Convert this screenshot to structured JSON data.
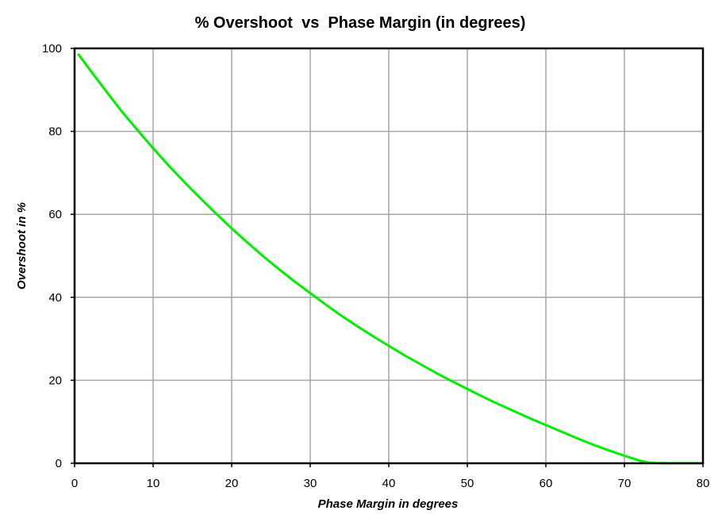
{
  "chart_data": {
    "type": "line",
    "title": "% Overshoot  vs  Phase Margin (in degrees)",
    "xlabel": "Phase Margin in degrees",
    "ylabel": "Overshoot in %",
    "xlim": [
      0,
      80
    ],
    "ylim": [
      0,
      100
    ],
    "xticks": [
      0,
      10,
      20,
      30,
      40,
      50,
      60,
      70,
      80
    ],
    "yticks": [
      0,
      20,
      40,
      60,
      80,
      100
    ],
    "grid": true,
    "legend": "none",
    "series": [
      {
        "color": "#00ee00",
        "x": [
          0.5,
          2,
          4,
          6,
          8,
          10,
          12,
          14,
          16,
          18,
          20,
          22,
          24,
          26,
          28,
          30,
          32,
          34,
          36,
          38,
          40,
          42,
          44,
          46,
          48,
          50,
          52,
          54,
          56,
          58,
          60,
          62,
          64,
          66,
          68,
          70,
          71,
          72,
          73,
          74,
          76,
          78,
          80
        ],
        "y": [
          98.5,
          94.7,
          89.7,
          84.8,
          80.3,
          75.9,
          71.7,
          67.7,
          63.9,
          60.2,
          56.6,
          53.2,
          49.9,
          46.8,
          43.8,
          41.0,
          38.2,
          35.5,
          33.0,
          30.6,
          28.3,
          26.0,
          23.9,
          21.8,
          19.8,
          17.9,
          16.0,
          14.2,
          12.5,
          10.8,
          9.2,
          7.6,
          6.0,
          4.5,
          3.1,
          1.8,
          1.2,
          0.6,
          0.2,
          0.05,
          0.0,
          0.0,
          0.0
        ]
      }
    ]
  }
}
